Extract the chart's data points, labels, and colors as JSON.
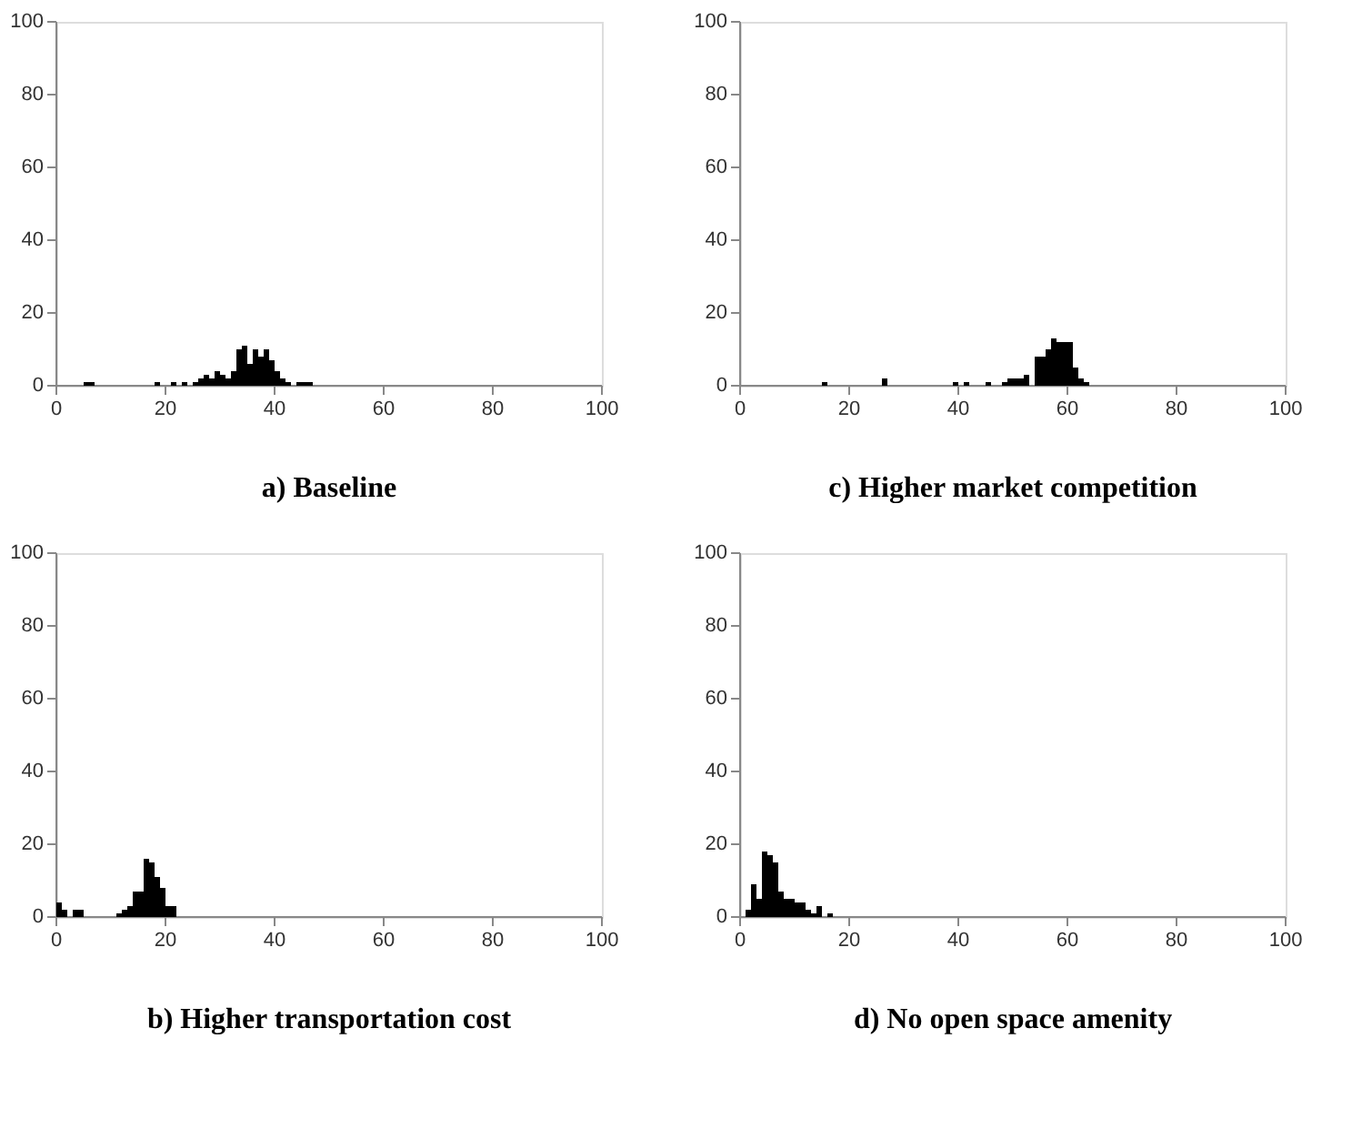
{
  "chart_data": [
    {
      "type": "histogram",
      "title": "a)   Baseline",
      "color": "#000000",
      "bins": [
        5,
        6,
        7,
        8,
        9,
        10,
        11,
        12,
        13,
        14,
        15,
        16,
        17,
        18,
        19,
        20,
        21,
        22,
        23,
        24,
        25,
        26,
        27,
        28,
        29,
        30,
        31,
        32,
        33,
        34,
        35,
        36,
        37,
        38,
        39,
        40,
        41,
        42,
        43,
        44,
        45,
        46,
        47
      ],
      "values": [
        1,
        1,
        0,
        0,
        0,
        0,
        0,
        0,
        0,
        0,
        0,
        0,
        0,
        1,
        0,
        0,
        1,
        0,
        1,
        0,
        1,
        2,
        3,
        2,
        4,
        3,
        2,
        4,
        10,
        11,
        6,
        10,
        8,
        10,
        7,
        4,
        2,
        1,
        0,
        1,
        1,
        1
      ],
      "xlim": [
        0,
        100
      ],
      "ylim": [
        0,
        100
      ],
      "xticks": [
        0,
        20,
        40,
        60,
        80,
        100
      ],
      "yticks": [
        0,
        20,
        40,
        60,
        80,
        100
      ],
      "grid": false
    },
    {
      "type": "histogram",
      "title": "c)   Higher market competition",
      "color": "#000000",
      "bins": [
        15,
        16,
        17,
        18,
        19,
        20,
        21,
        22,
        23,
        24,
        25,
        26,
        27,
        28,
        29,
        30,
        31,
        32,
        33,
        34,
        35,
        36,
        37,
        38,
        39,
        40,
        41,
        42,
        43,
        44,
        45,
        46,
        47,
        48,
        49,
        50,
        51,
        52,
        53,
        54,
        55,
        56,
        57,
        58,
        59,
        60,
        61,
        62,
        63,
        64
      ],
      "values": [
        1,
        0,
        0,
        0,
        0,
        0,
        0,
        0,
        0,
        0,
        0,
        2,
        0,
        0,
        0,
        0,
        0,
        0,
        0,
        0,
        0,
        0,
        0,
        0,
        1,
        0,
        1,
        0,
        0,
        0,
        1,
        0,
        0,
        1,
        2,
        2,
        2,
        3,
        0,
        8,
        8,
        10,
        13,
        12,
        12,
        12,
        5,
        2,
        1
      ],
      "xlim": [
        0,
        100
      ],
      "ylim": [
        0,
        100
      ],
      "xticks": [
        0,
        20,
        40,
        60,
        80,
        100
      ],
      "yticks": [
        0,
        20,
        40,
        60,
        80,
        100
      ],
      "grid": false
    },
    {
      "type": "histogram",
      "title": "b)   Higher transportation cost",
      "color": "#000000",
      "bins": [
        0,
        1,
        2,
        3,
        4,
        5,
        6,
        7,
        8,
        9,
        10,
        11,
        12,
        13,
        14,
        15,
        16,
        17,
        18,
        19,
        20,
        21,
        22
      ],
      "values": [
        4,
        2,
        0,
        2,
        2,
        0,
        0,
        0,
        0,
        0,
        0,
        1,
        2,
        3,
        7,
        7,
        16,
        15,
        11,
        8,
        3,
        3
      ],
      "xlim": [
        0,
        100
      ],
      "ylim": [
        0,
        100
      ],
      "xticks": [
        0,
        20,
        40,
        60,
        80,
        100
      ],
      "yticks": [
        0,
        20,
        40,
        60,
        80,
        100
      ],
      "grid": false
    },
    {
      "type": "histogram",
      "title": "d)   No open space amenity",
      "color": "#000000",
      "bins": [
        1,
        2,
        3,
        4,
        5,
        6,
        7,
        8,
        9,
        10,
        11,
        12,
        13,
        14,
        15,
        16,
        17
      ],
      "values": [
        2,
        9,
        5,
        18,
        17,
        15,
        7,
        5,
        5,
        4,
        4,
        2,
        1,
        3,
        0,
        1
      ],
      "xlim": [
        0,
        100
      ],
      "ylim": [
        0,
        100
      ],
      "xticks": [
        0,
        20,
        40,
        60,
        80,
        100
      ],
      "yticks": [
        0,
        20,
        40,
        60,
        80,
        100
      ],
      "grid": false
    }
  ]
}
